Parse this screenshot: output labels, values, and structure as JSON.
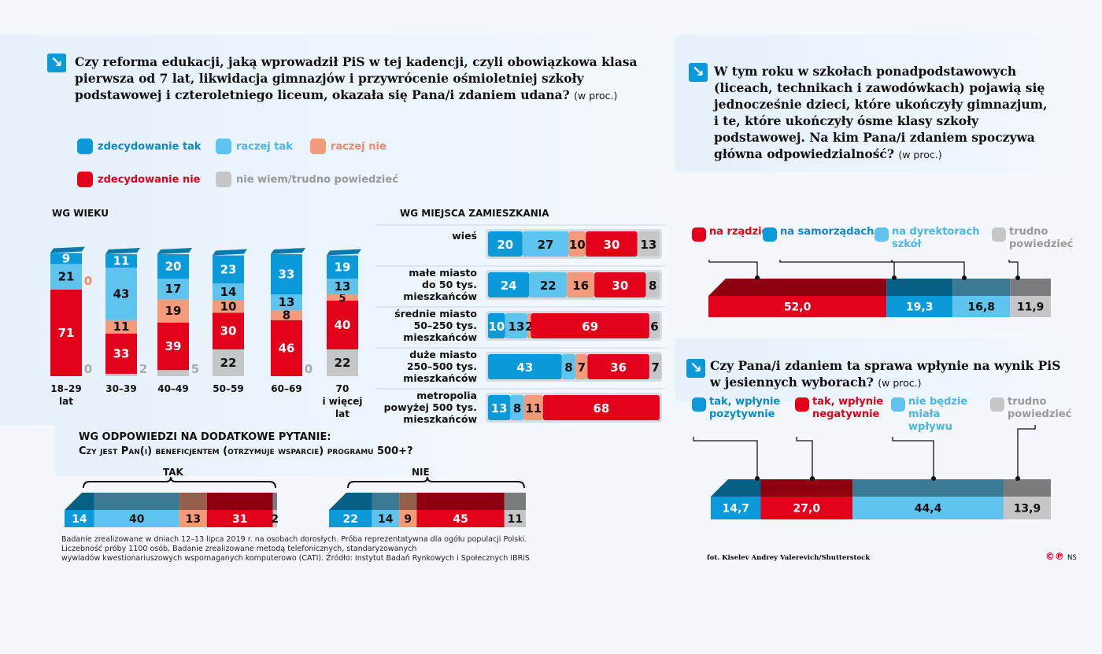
{
  "colors": {
    "zdecydowanie_tak": "#0a9ad9",
    "raczej_tak": "#5ec4ee",
    "raczej_nie": "#f29a7a",
    "zdecydowanie_nie": "#e2001a",
    "nie_wiem": "#c4c6c8"
  },
  "left": {
    "title": "Czy reforma edukacji, jaką wprowadził PiS w tej kadencji, czyli obowiązkowa klasa pierwsza od 7 lat, likwidacja gimnazjów i przywrócenie ośmioletniej szkoły podstawowej i czteroletniego liceum, okazała się Pana/i zdaniem udana?",
    "unit": "(w proc.)",
    "legend": [
      "zdecydowanie tak",
      "raczej tak",
      "raczej nie",
      "zdecydowanie nie",
      "nie wiem/trudno powiedzieć"
    ],
    "age_heading": "WG WIEKU",
    "residence_heading": "WG MIEJSCA ZAMIESZKANIA",
    "extra_heading_1": "WG ODPOWIEDZI NA DODATKOWE PYTANIE:",
    "extra_heading_2": "Czy jest Pan(i) beneficjentem (otrzymuje wsparcie) programu 500+?",
    "footnote": [
      "Badanie zrealizowane w dniach 12–13 lipca 2019 r. na osobach dorosłych. Próba reprezentatywna dla ogółu populacji Polski.",
      "Liczebność próby 1100 osób. Badanie zrealizowane metodą telefonicznych, standaryzowanych",
      "wywiadów kwestionariuszowych wspomaganych komputerowo (CATI).  Źródło: Instytut Badań Rynkowych i Społecznych IBRiS"
    ]
  },
  "right": {
    "title1": "W tym roku w szkołach ponadpodstawowych (liceach, technikach i zawodówkach) pojawią się jednocześnie dzieci, które ukończyły gimnazjum, i te, które ukończyły ósme klasy szkoły podstawowej. Na kim Pana/i zdaniem spoczywa główna odpowiedzialność?",
    "title2": "Czy Pana/i zdaniem ta sprawa wpłynie na wynik PiS w jesiennych wyborach?",
    "unit": "(w proc.)",
    "photo_credit": "fot. Kiselev Andrey Valerevich/Shutterstock",
    "logo": "©℗",
    "author": "NS"
  },
  "chart_data": [
    {
      "type": "bar",
      "orientation": "vertical",
      "stacked": true,
      "title": "WG WIEKU",
      "categories": [
        [
          "18–29",
          "lat"
        ],
        [
          "30–39"
        ],
        [
          "40–49"
        ],
        [
          "50–59"
        ],
        [
          "60–69"
        ],
        [
          "70",
          "i więcej",
          "lat"
        ]
      ],
      "series": [
        {
          "name": "zdecydowanie tak",
          "values": [
            9,
            11,
            20,
            23,
            33,
            19
          ]
        },
        {
          "name": "raczej tak",
          "values": [
            21,
            43,
            17,
            14,
            13,
            13
          ]
        },
        {
          "name": "raczej nie",
          "values": [
            0,
            11,
            19,
            10,
            8,
            5
          ]
        },
        {
          "name": "zdecydowanie nie",
          "values": [
            71,
            33,
            39,
            30,
            46,
            40
          ]
        },
        {
          "name": "nie wiem/trudno powiedzieć",
          "values": [
            0,
            2,
            5,
            22,
            0,
            22
          ]
        }
      ]
    },
    {
      "type": "bar",
      "orientation": "horizontal",
      "stacked": true,
      "title": "WG MIEJSCA ZAMIESZKANIA",
      "categories": [
        [
          [
            "wieś",
            false
          ]
        ],
        [
          [
            "małe miasto",
            false
          ],
          [
            "do 50 tys.",
            true
          ],
          [
            "mieszkańców",
            false
          ]
        ],
        [
          [
            "średnie miasto",
            false
          ],
          [
            "50–250 tys.",
            true
          ],
          [
            "mieszkańców",
            false
          ]
        ],
        [
          [
            "duże miasto",
            false
          ],
          [
            "250–500 tys.",
            true
          ],
          [
            "mieszkańców",
            false
          ]
        ],
        [
          [
            "metropolia",
            false
          ],
          [
            "powyżej 500 tys.",
            true
          ],
          [
            "mieszkańców",
            false
          ]
        ]
      ],
      "series": [
        {
          "name": "zdecydowanie tak",
          "values": [
            20,
            24,
            10,
            43,
            13
          ]
        },
        {
          "name": "raczej tak",
          "values": [
            27,
            22,
            13,
            8,
            8
          ]
        },
        {
          "name": "raczej nie",
          "values": [
            10,
            16,
            2,
            7,
            11
          ]
        },
        {
          "name": "zdecydowanie nie",
          "values": [
            30,
            30,
            69,
            36,
            68
          ]
        },
        {
          "name": "nie wiem/trudno powiedzieć",
          "values": [
            13,
            8,
            6,
            7,
            0
          ]
        }
      ]
    },
    {
      "type": "bar",
      "orientation": "horizontal",
      "stacked": true,
      "title": "Czy jest Pan(i) beneficjentem programu 500+?",
      "categories": [
        "TAK",
        "NIE"
      ],
      "series": [
        {
          "name": "zdecydowanie tak",
          "values": [
            14,
            22
          ]
        },
        {
          "name": "raczej tak",
          "values": [
            40,
            14
          ]
        },
        {
          "name": "raczej nie",
          "values": [
            13,
            9
          ]
        },
        {
          "name": "zdecydowanie nie",
          "values": [
            31,
            45
          ]
        },
        {
          "name": "nie wiem/trudno powiedzieć",
          "values": [
            2,
            11
          ]
        }
      ]
    },
    {
      "type": "bar",
      "orientation": "horizontal",
      "stacked": true,
      "labels": [
        "na rządzie",
        "na samorządach",
        "na dyrektorach szkół",
        "trudno powiedzieć"
      ],
      "values": [
        "52,0",
        "19,3",
        "16,8",
        "11,9"
      ],
      "colors": [
        "#e2001a",
        "#0a9ad9",
        "#5ec4ee",
        "#c4c6c8"
      ]
    },
    {
      "type": "bar",
      "orientation": "horizontal",
      "stacked": true,
      "labels": [
        "tak, wpłynie pozytywnie",
        "tak, wpłynie negatywnie",
        "nie będzie miała wpływu",
        "trudno powiedzieć"
      ],
      "values": [
        "14,7",
        "27,0",
        "44,4",
        "13,9"
      ],
      "colors": [
        "#0a9ad9",
        "#e2001a",
        "#5ec4ee",
        "#c4c6c8"
      ]
    }
  ]
}
